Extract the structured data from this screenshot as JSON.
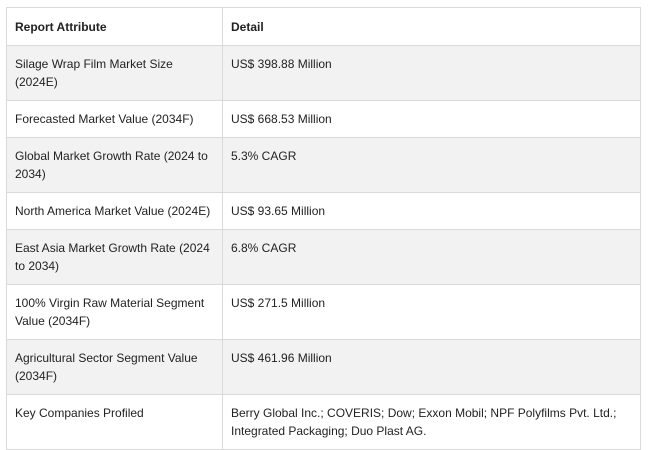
{
  "table": {
    "headers": [
      "Report Attribute",
      "Detail"
    ],
    "rows": [
      [
        "Silage Wrap Film Market Size (2024E)",
        "US$ 398.88 Million"
      ],
      [
        "Forecasted Market Value (2034F)",
        "US$ 668.53 Million"
      ],
      [
        "Global Market Growth Rate (2024 to 2034)",
        "5.3% CAGR"
      ],
      [
        "North America Market Value (2024E)",
        "US$ 93.65 Million"
      ],
      [
        "East Asia Market Growth Rate (2024 to 2034)",
        "6.8% CAGR"
      ],
      [
        "100% Virgin Raw Material Segment Value (2034F)",
        "US$ 271.5 Million"
      ],
      [
        "Agricultural Sector Segment Value (2034F)",
        "US$ 461.96 Million"
      ],
      [
        "Key Companies Profiled",
        "Berry Global Inc.; COVERIS; Dow; Exxon Mobil; NPF Polyfilms Pvt. Ltd.; Integrated Packaging; Duo Plast AG."
      ]
    ]
  }
}
